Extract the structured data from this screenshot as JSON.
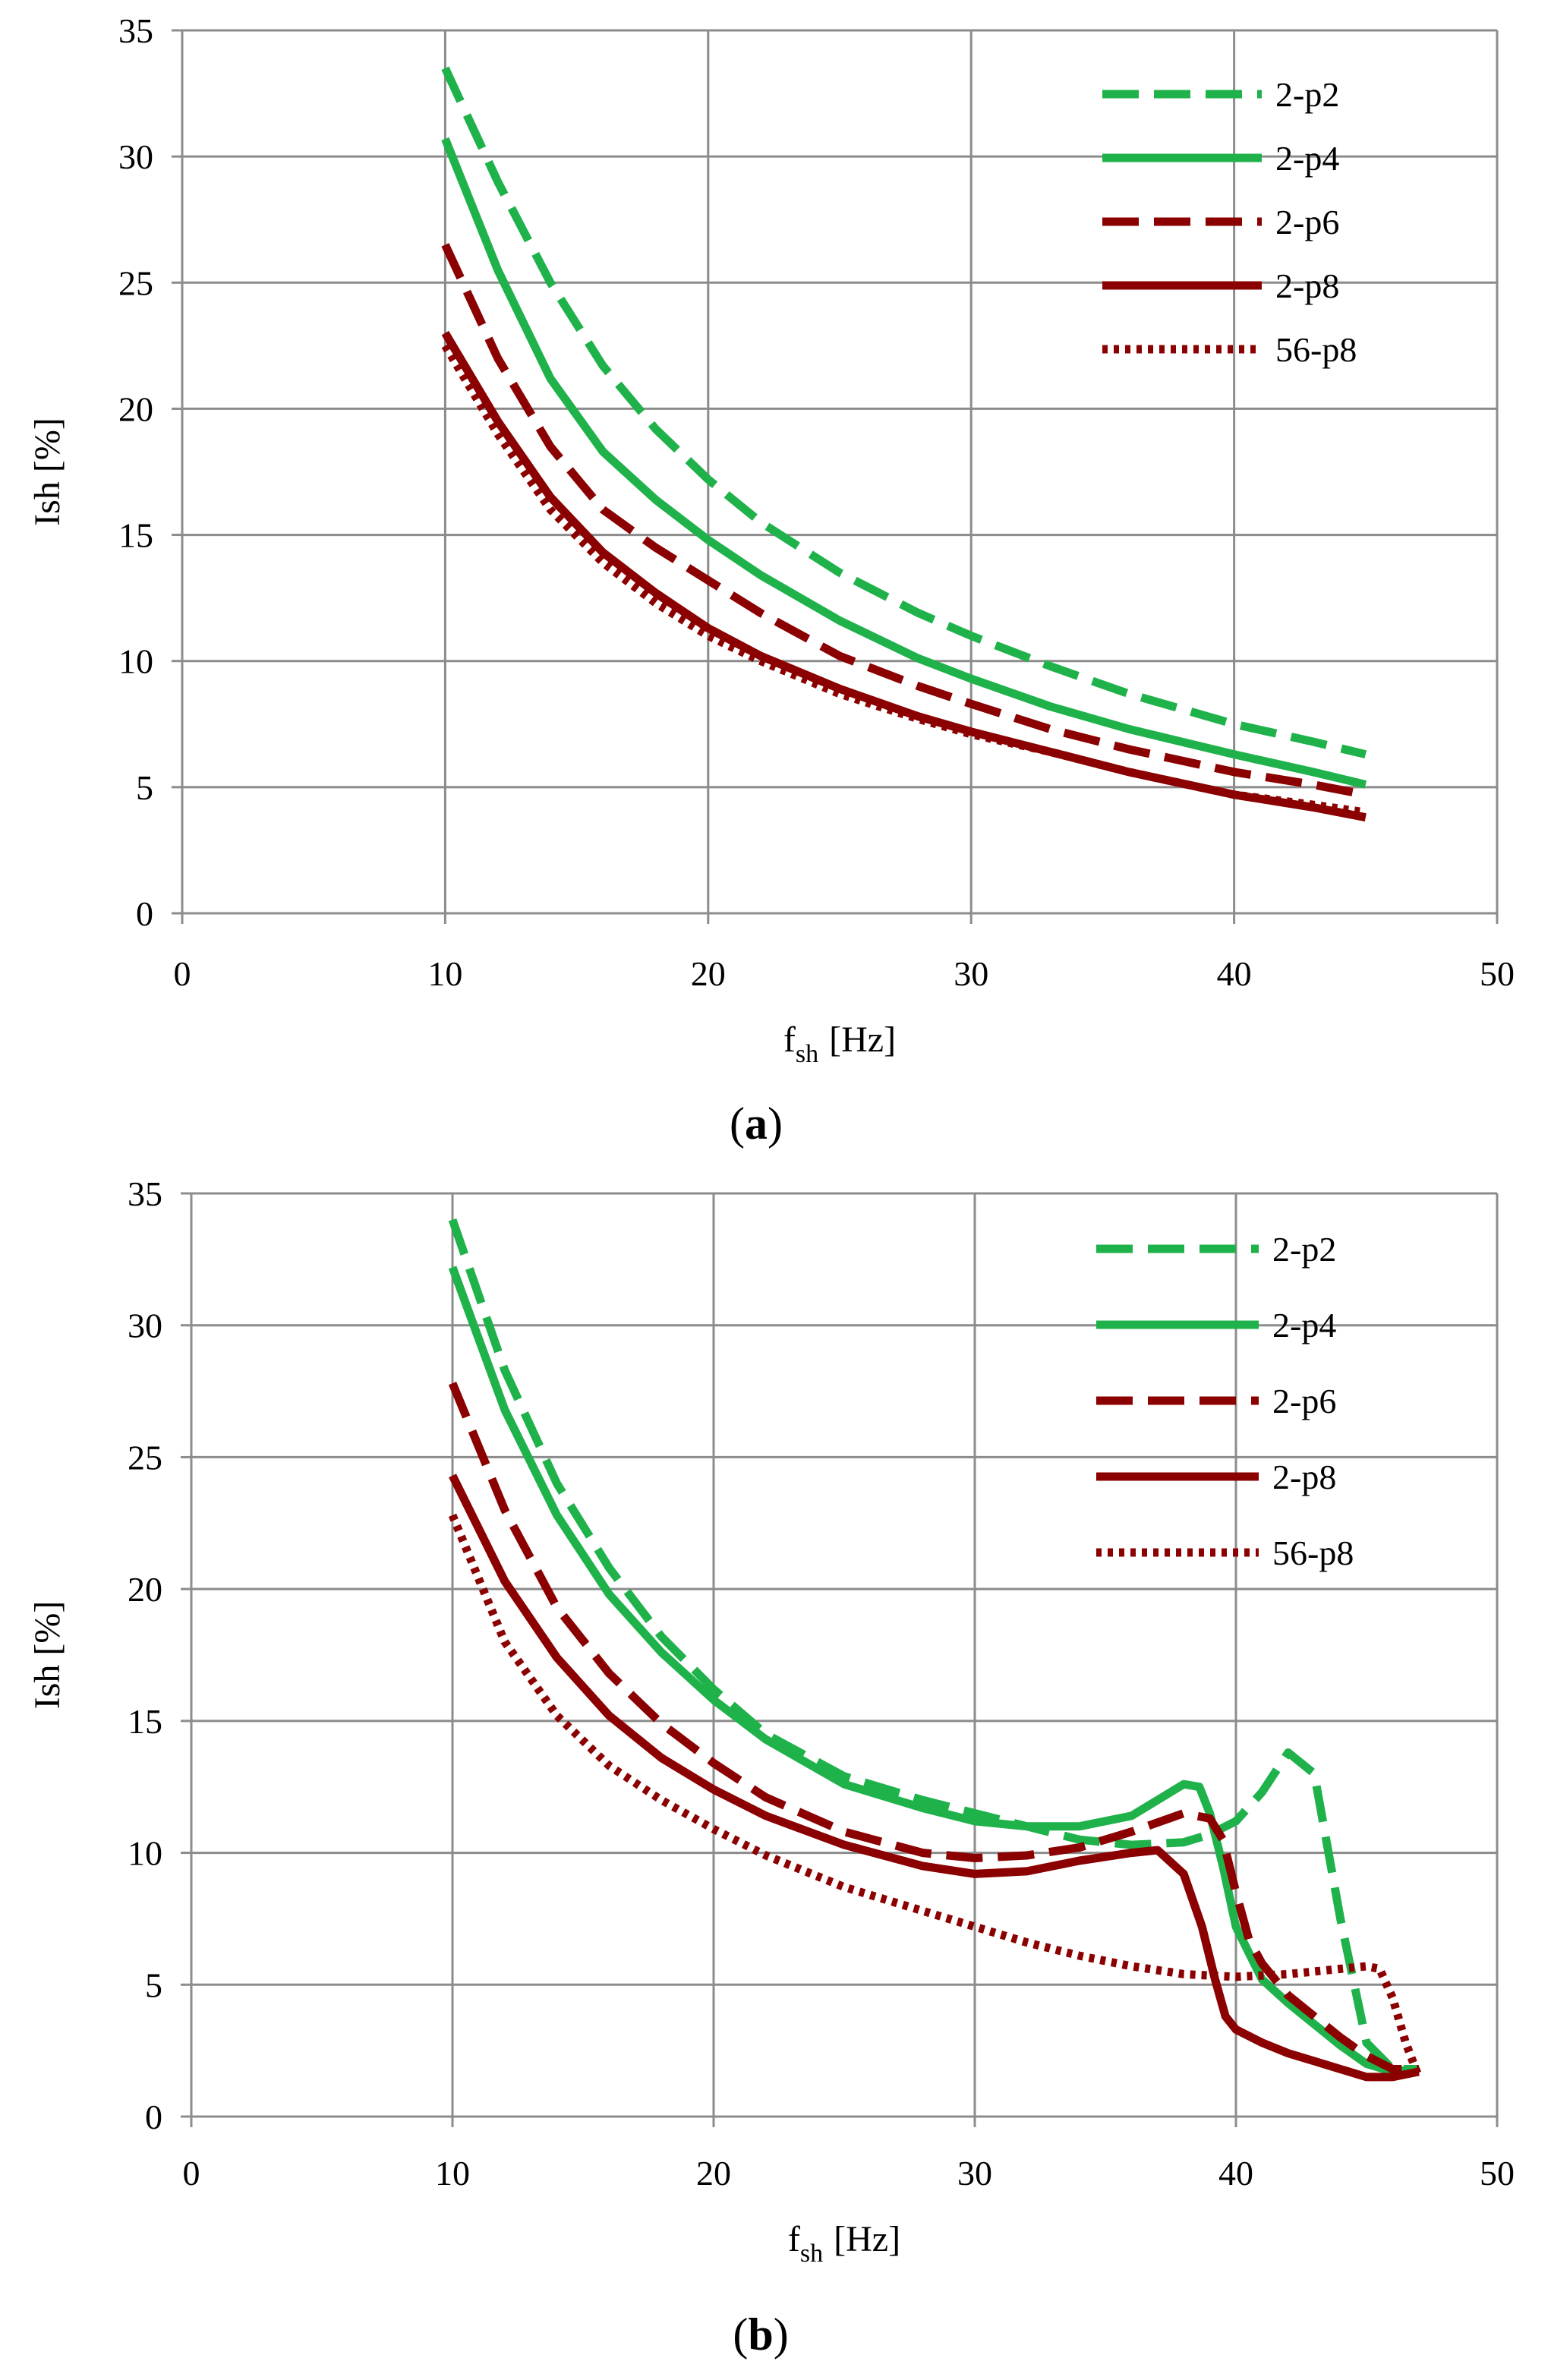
{
  "chart_data": [
    {
      "type": "line",
      "panel_label": "a",
      "xlabel_main": "f",
      "xlabel_sub": "sh",
      "xlabel_unit": "[Hz]",
      "ylabel": "Ish [%]",
      "xlim": [
        0,
        50
      ],
      "ylim": [
        0,
        35
      ],
      "xticks": [
        0,
        10,
        20,
        30,
        40,
        50
      ],
      "yticks": [
        0,
        5,
        10,
        15,
        20,
        25,
        30,
        35
      ],
      "grid": true,
      "legend_position": "top-right",
      "series": [
        {
          "name": "2-p2",
          "color": "#1fb24a",
          "dash": "dashed",
          "x": [
            10,
            12,
            14,
            16,
            18,
            20,
            22,
            25,
            28,
            30,
            33,
            36,
            40,
            43,
            45
          ],
          "y": [
            33.5,
            29.0,
            25.0,
            21.7,
            19.2,
            17.2,
            15.5,
            13.5,
            11.9,
            11.0,
            9.8,
            8.7,
            7.5,
            6.8,
            6.3
          ]
        },
        {
          "name": "2-p4",
          "color": "#1fb24a",
          "dash": "solid",
          "x": [
            10,
            12,
            14,
            16,
            18,
            20,
            22,
            25,
            28,
            30,
            33,
            36,
            40,
            43,
            45
          ],
          "y": [
            30.7,
            25.5,
            21.2,
            18.3,
            16.4,
            14.8,
            13.4,
            11.6,
            10.1,
            9.3,
            8.2,
            7.3,
            6.3,
            5.6,
            5.1
          ]
        },
        {
          "name": "2-p6",
          "color": "#8b0000",
          "dash": "dashed",
          "x": [
            10,
            12,
            14,
            16,
            18,
            20,
            22,
            25,
            28,
            30,
            33,
            36,
            40,
            43,
            45
          ],
          "y": [
            26.5,
            22.0,
            18.5,
            16.0,
            14.5,
            13.2,
            11.9,
            10.2,
            9.0,
            8.3,
            7.3,
            6.5,
            5.6,
            5.1,
            4.7
          ]
        },
        {
          "name": "2-p8",
          "color": "#8b0000",
          "dash": "solid",
          "x": [
            10,
            12,
            14,
            16,
            18,
            20,
            22,
            25,
            28,
            30,
            33,
            36,
            40,
            43,
            45
          ],
          "y": [
            23.0,
            19.5,
            16.5,
            14.3,
            12.7,
            11.3,
            10.2,
            8.9,
            7.8,
            7.2,
            6.4,
            5.6,
            4.7,
            4.2,
            3.8
          ]
        },
        {
          "name": "56-p8",
          "color": "#8b0000",
          "dash": "dotted",
          "x": [
            10,
            12,
            14,
            16,
            18,
            20,
            22,
            25,
            28,
            30,
            33,
            36,
            40,
            43,
            45
          ],
          "y": [
            22.5,
            19.0,
            16.0,
            13.9,
            12.3,
            11.0,
            10.0,
            8.7,
            7.7,
            7.1,
            6.4,
            5.6,
            4.7,
            4.3,
            4.0
          ]
        }
      ]
    },
    {
      "type": "line",
      "panel_label": "b",
      "xlabel_main": "f",
      "xlabel_sub": "sh",
      "xlabel_unit": "[Hz]",
      "ylabel": "Ish [%]",
      "xlim": [
        0,
        50
      ],
      "ylim": [
        0,
        35
      ],
      "xticks": [
        0,
        10,
        20,
        30,
        40,
        50
      ],
      "yticks": [
        0,
        5,
        10,
        15,
        20,
        25,
        30,
        35
      ],
      "grid": true,
      "legend_position": "top-right",
      "series": [
        {
          "name": "2-p2",
          "color": "#1fb24a",
          "dash": "dashed",
          "x": [
            10,
            12,
            14,
            16,
            18,
            20,
            22,
            25,
            28,
            30,
            32,
            34,
            36,
            38,
            39,
            40,
            41,
            42,
            43,
            44,
            45,
            46,
            47
          ],
          "y": [
            34.0,
            28.3,
            24.0,
            20.8,
            18.2,
            16.2,
            14.5,
            12.9,
            12.0,
            11.5,
            11.0,
            10.5,
            10.3,
            10.4,
            10.7,
            11.2,
            12.3,
            13.8,
            13.0,
            7.5,
            2.8,
            1.8,
            1.8
          ]
        },
        {
          "name": "2-p4",
          "color": "#1fb24a",
          "dash": "solid",
          "x": [
            10,
            12,
            14,
            16,
            18,
            20,
            22,
            25,
            28,
            30,
            32,
            34,
            36,
            37,
            38,
            38.6,
            39,
            39.5,
            40,
            41,
            42,
            43,
            44,
            45,
            46,
            47
          ],
          "y": [
            32.2,
            26.8,
            22.8,
            19.8,
            17.6,
            15.8,
            14.3,
            12.6,
            11.7,
            11.2,
            11.0,
            11.0,
            11.4,
            12.0,
            12.6,
            12.5,
            11.5,
            9.5,
            7.2,
            5.2,
            4.3,
            3.5,
            2.7,
            2.0,
            1.7,
            1.8
          ]
        },
        {
          "name": "2-p6",
          "color": "#8b0000",
          "dash": "dashed",
          "x": [
            10,
            12,
            14,
            16,
            18,
            20,
            22,
            25,
            28,
            30,
            32,
            34,
            36,
            38,
            39,
            39.5,
            40,
            40.5,
            41,
            42,
            43,
            44,
            45,
            46,
            47
          ],
          "y": [
            27.8,
            23.0,
            19.3,
            16.8,
            14.9,
            13.4,
            12.1,
            10.8,
            10.0,
            9.8,
            9.9,
            10.2,
            10.8,
            11.5,
            11.3,
            10.5,
            8.5,
            6.7,
            5.8,
            4.6,
            3.8,
            3.0,
            2.3,
            1.8,
            1.8
          ]
        },
        {
          "name": "2-p8",
          "color": "#8b0000",
          "dash": "solid",
          "x": [
            10,
            12,
            14,
            16,
            18,
            20,
            22,
            25,
            28,
            30,
            32,
            34,
            36,
            37,
            38,
            38.7,
            39.2,
            39.6,
            40,
            41,
            42,
            43,
            44,
            45,
            46,
            47
          ],
          "y": [
            24.3,
            20.3,
            17.4,
            15.2,
            13.6,
            12.4,
            11.4,
            10.3,
            9.5,
            9.2,
            9.3,
            9.7,
            10.0,
            10.1,
            9.2,
            7.2,
            5.2,
            3.8,
            3.3,
            2.8,
            2.4,
            2.1,
            1.8,
            1.5,
            1.5,
            1.7
          ]
        },
        {
          "name": "56-p8",
          "color": "#8b0000",
          "dash": "dotted",
          "x": [
            10,
            12,
            14,
            16,
            18,
            20,
            22,
            25,
            28,
            30,
            32,
            34,
            36,
            38,
            40,
            42,
            44,
            45,
            45.5,
            46,
            46.5,
            47
          ],
          "y": [
            22.8,
            18.0,
            15.2,
            13.3,
            12.0,
            10.9,
            9.9,
            8.7,
            7.8,
            7.2,
            6.6,
            6.1,
            5.7,
            5.4,
            5.3,
            5.4,
            5.6,
            5.7,
            5.6,
            4.5,
            2.8,
            1.5
          ]
        }
      ]
    }
  ]
}
